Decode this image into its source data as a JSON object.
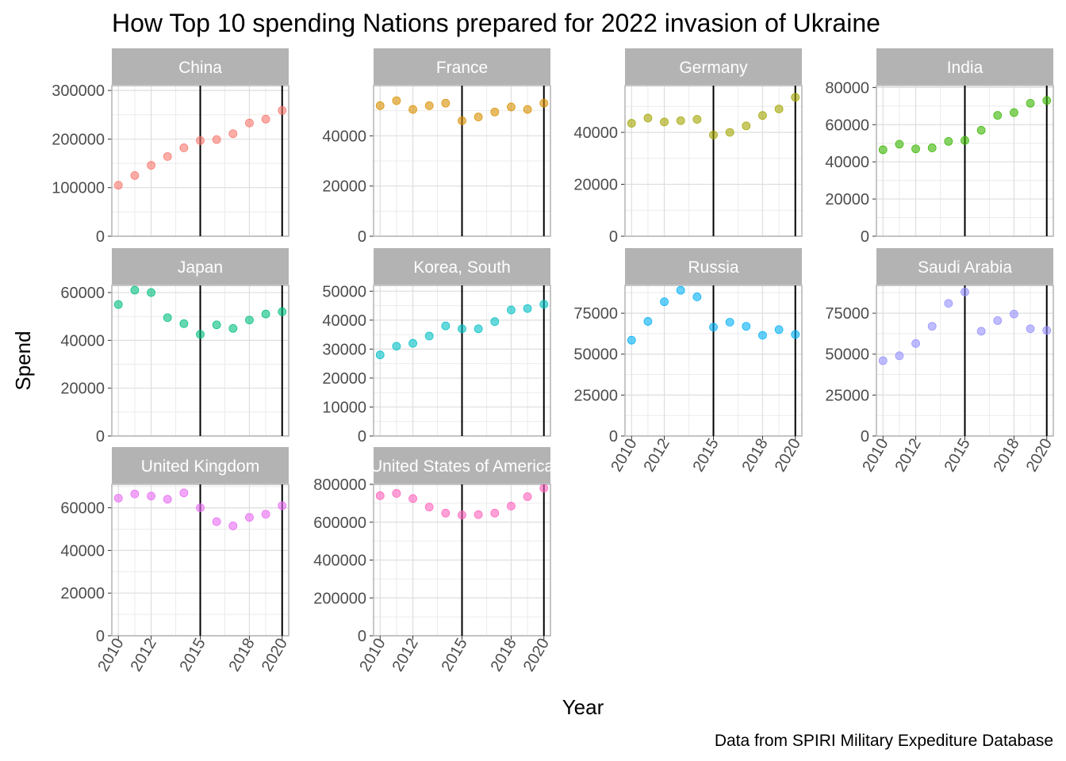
{
  "chart_data": {
    "type": "scatter",
    "title": "How Top 10 spending Nations prepared for 2022 invasion of Ukraine",
    "xlabel": "Year",
    "ylabel": "Spend",
    "caption": "Data from SPIRI Military Expediture Database",
    "x": [
      2010,
      2011,
      2012,
      2013,
      2014,
      2015,
      2016,
      2017,
      2018,
      2019,
      2020
    ],
    "x_ticks": [
      2010,
      2012,
      2015,
      2018,
      2020
    ],
    "vertical_lines": [
      2015,
      2020
    ],
    "grid": true,
    "panels": [
      {
        "name": "China",
        "color": "#F8766D",
        "ylim": [
          0,
          310000
        ],
        "y_ticks": [
          0,
          100000,
          200000,
          300000
        ],
        "values": [
          105000,
          125000,
          146000,
          164000,
          182000,
          197000,
          199000,
          211000,
          233000,
          241000,
          259000
        ]
      },
      {
        "name": "France",
        "color": "#D89000",
        "ylim": [
          0,
          60000
        ],
        "y_ticks": [
          0,
          20000,
          40000
        ],
        "values": [
          52000,
          54000,
          50500,
          52000,
          53000,
          46000,
          47500,
          49500,
          51500,
          50500,
          53000
        ]
      },
      {
        "name": "Germany",
        "color": "#A3A500",
        "ylim": [
          0,
          58000
        ],
        "y_ticks": [
          0,
          20000,
          40000
        ],
        "values": [
          43500,
          45500,
          44000,
          44500,
          45000,
          39000,
          40000,
          42500,
          46500,
          49000,
          53500
        ]
      },
      {
        "name": "India",
        "color": "#39B600",
        "ylim": [
          0,
          81000
        ],
        "y_ticks": [
          0,
          20000,
          40000,
          60000,
          80000
        ],
        "values": [
          46500,
          49500,
          47000,
          47500,
          51000,
          51500,
          57000,
          65000,
          66500,
          71500,
          73000
        ]
      },
      {
        "name": "Japan",
        "color": "#00BF7D",
        "ylim": [
          0,
          63000
        ],
        "y_ticks": [
          0,
          20000,
          40000,
          60000
        ],
        "values": [
          55000,
          61000,
          60000,
          49500,
          47000,
          42500,
          46500,
          45000,
          48500,
          51000,
          52000
        ]
      },
      {
        "name": "Korea, South",
        "color": "#00BFC4",
        "ylim": [
          0,
          52000
        ],
        "y_ticks": [
          0,
          10000,
          20000,
          30000,
          40000,
          50000
        ],
        "values": [
          28000,
          31000,
          32000,
          34500,
          38000,
          37000,
          37000,
          39500,
          43500,
          44000,
          45500
        ]
      },
      {
        "name": "Russia",
        "color": "#00B0F6",
        "ylim": [
          0,
          92000
        ],
        "y_ticks": [
          0,
          25000,
          50000,
          75000
        ],
        "values": [
          58500,
          70000,
          82000,
          89000,
          85000,
          66500,
          69500,
          67000,
          61500,
          65000,
          62000
        ]
      },
      {
        "name": "Saudi Arabia",
        "color": "#9590FF",
        "ylim": [
          0,
          92000
        ],
        "y_ticks": [
          0,
          25000,
          50000,
          75000
        ],
        "values": [
          46000,
          49000,
          56500,
          67000,
          81000,
          88000,
          64000,
          70500,
          74500,
          65500,
          64500
        ]
      },
      {
        "name": "United Kingdom",
        "color": "#E76BF3",
        "ylim": [
          0,
          71000
        ],
        "y_ticks": [
          0,
          20000,
          40000,
          60000
        ],
        "values": [
          64500,
          66500,
          65500,
          64000,
          67000,
          60000,
          53500,
          51500,
          55500,
          57000,
          61000
        ]
      },
      {
        "name": "United States of America",
        "color": "#FF62BC",
        "ylim": [
          0,
          800000
        ],
        "y_ticks": [
          0,
          200000,
          400000,
          600000,
          800000
        ],
        "values": [
          740000,
          752000,
          725000,
          680000,
          648000,
          638000,
          640000,
          648000,
          685000,
          735000,
          780000
        ]
      }
    ]
  }
}
